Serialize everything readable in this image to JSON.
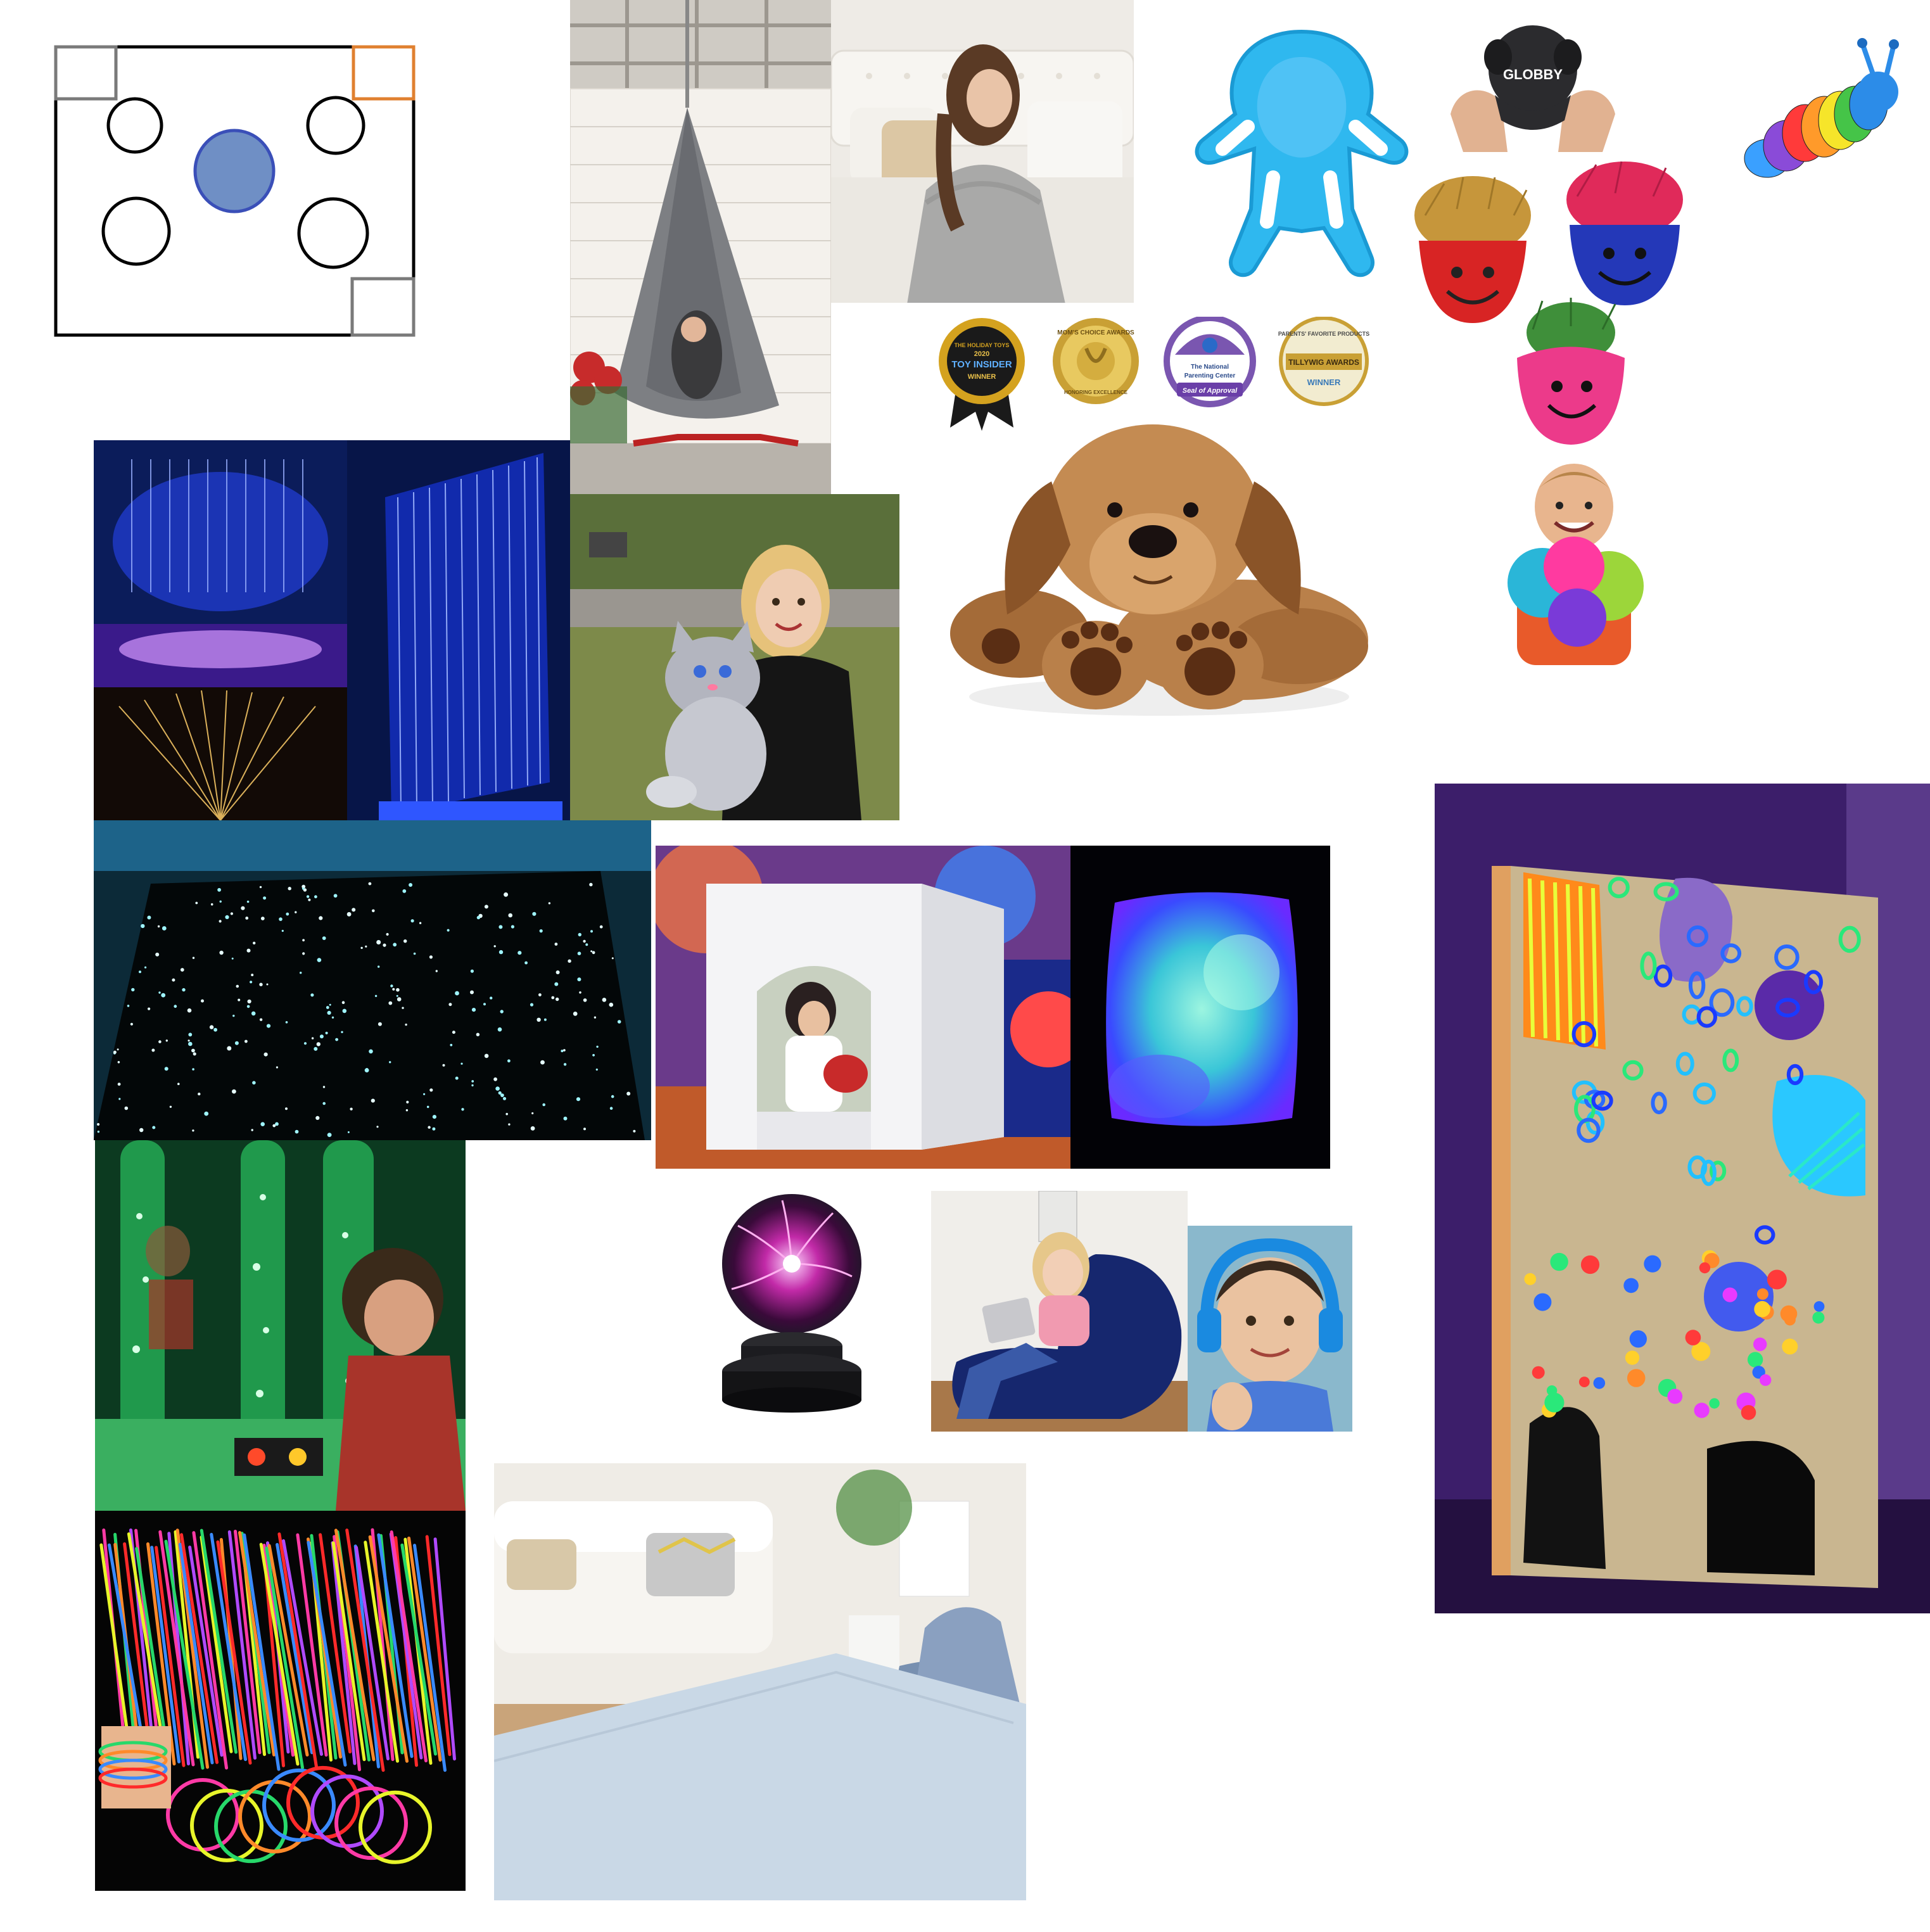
{
  "floor_plan": {
    "outline_color": "#000000",
    "center_fill": "#6f8fc5",
    "center_stroke": "#3a4fb8",
    "corner_colors": [
      "#7a7a7a",
      "#e08030",
      "#7a7a7a"
    ]
  },
  "awards": {
    "toy_insider": {
      "l1": "THE HOLIDAY TOYS",
      "l2": "TOY INSIDER",
      "l3": "2020",
      "l4": "WINNER"
    },
    "moms_choice": {
      "l1": "MOM'S CHOICE AWARDS",
      "l2": "HONORING EXCELLENCE"
    },
    "parenting_center": {
      "l1": "The National",
      "l2": "Parenting Center",
      "l3": "Seal of Approval"
    },
    "tillywig": {
      "l1": "PARENTS' FAVORITE PRODUCTS",
      "l2": "TILLYWIG AWARDS",
      "l3": "WINNER"
    }
  },
  "toys": {
    "stress_toy_brand": "GLOBBY"
  },
  "colors": {
    "neon_blue": "#1f3cff",
    "neon_green": "#27d86a",
    "glow_pink": "#ff3fa6",
    "glow_yellow": "#e8f52a"
  }
}
